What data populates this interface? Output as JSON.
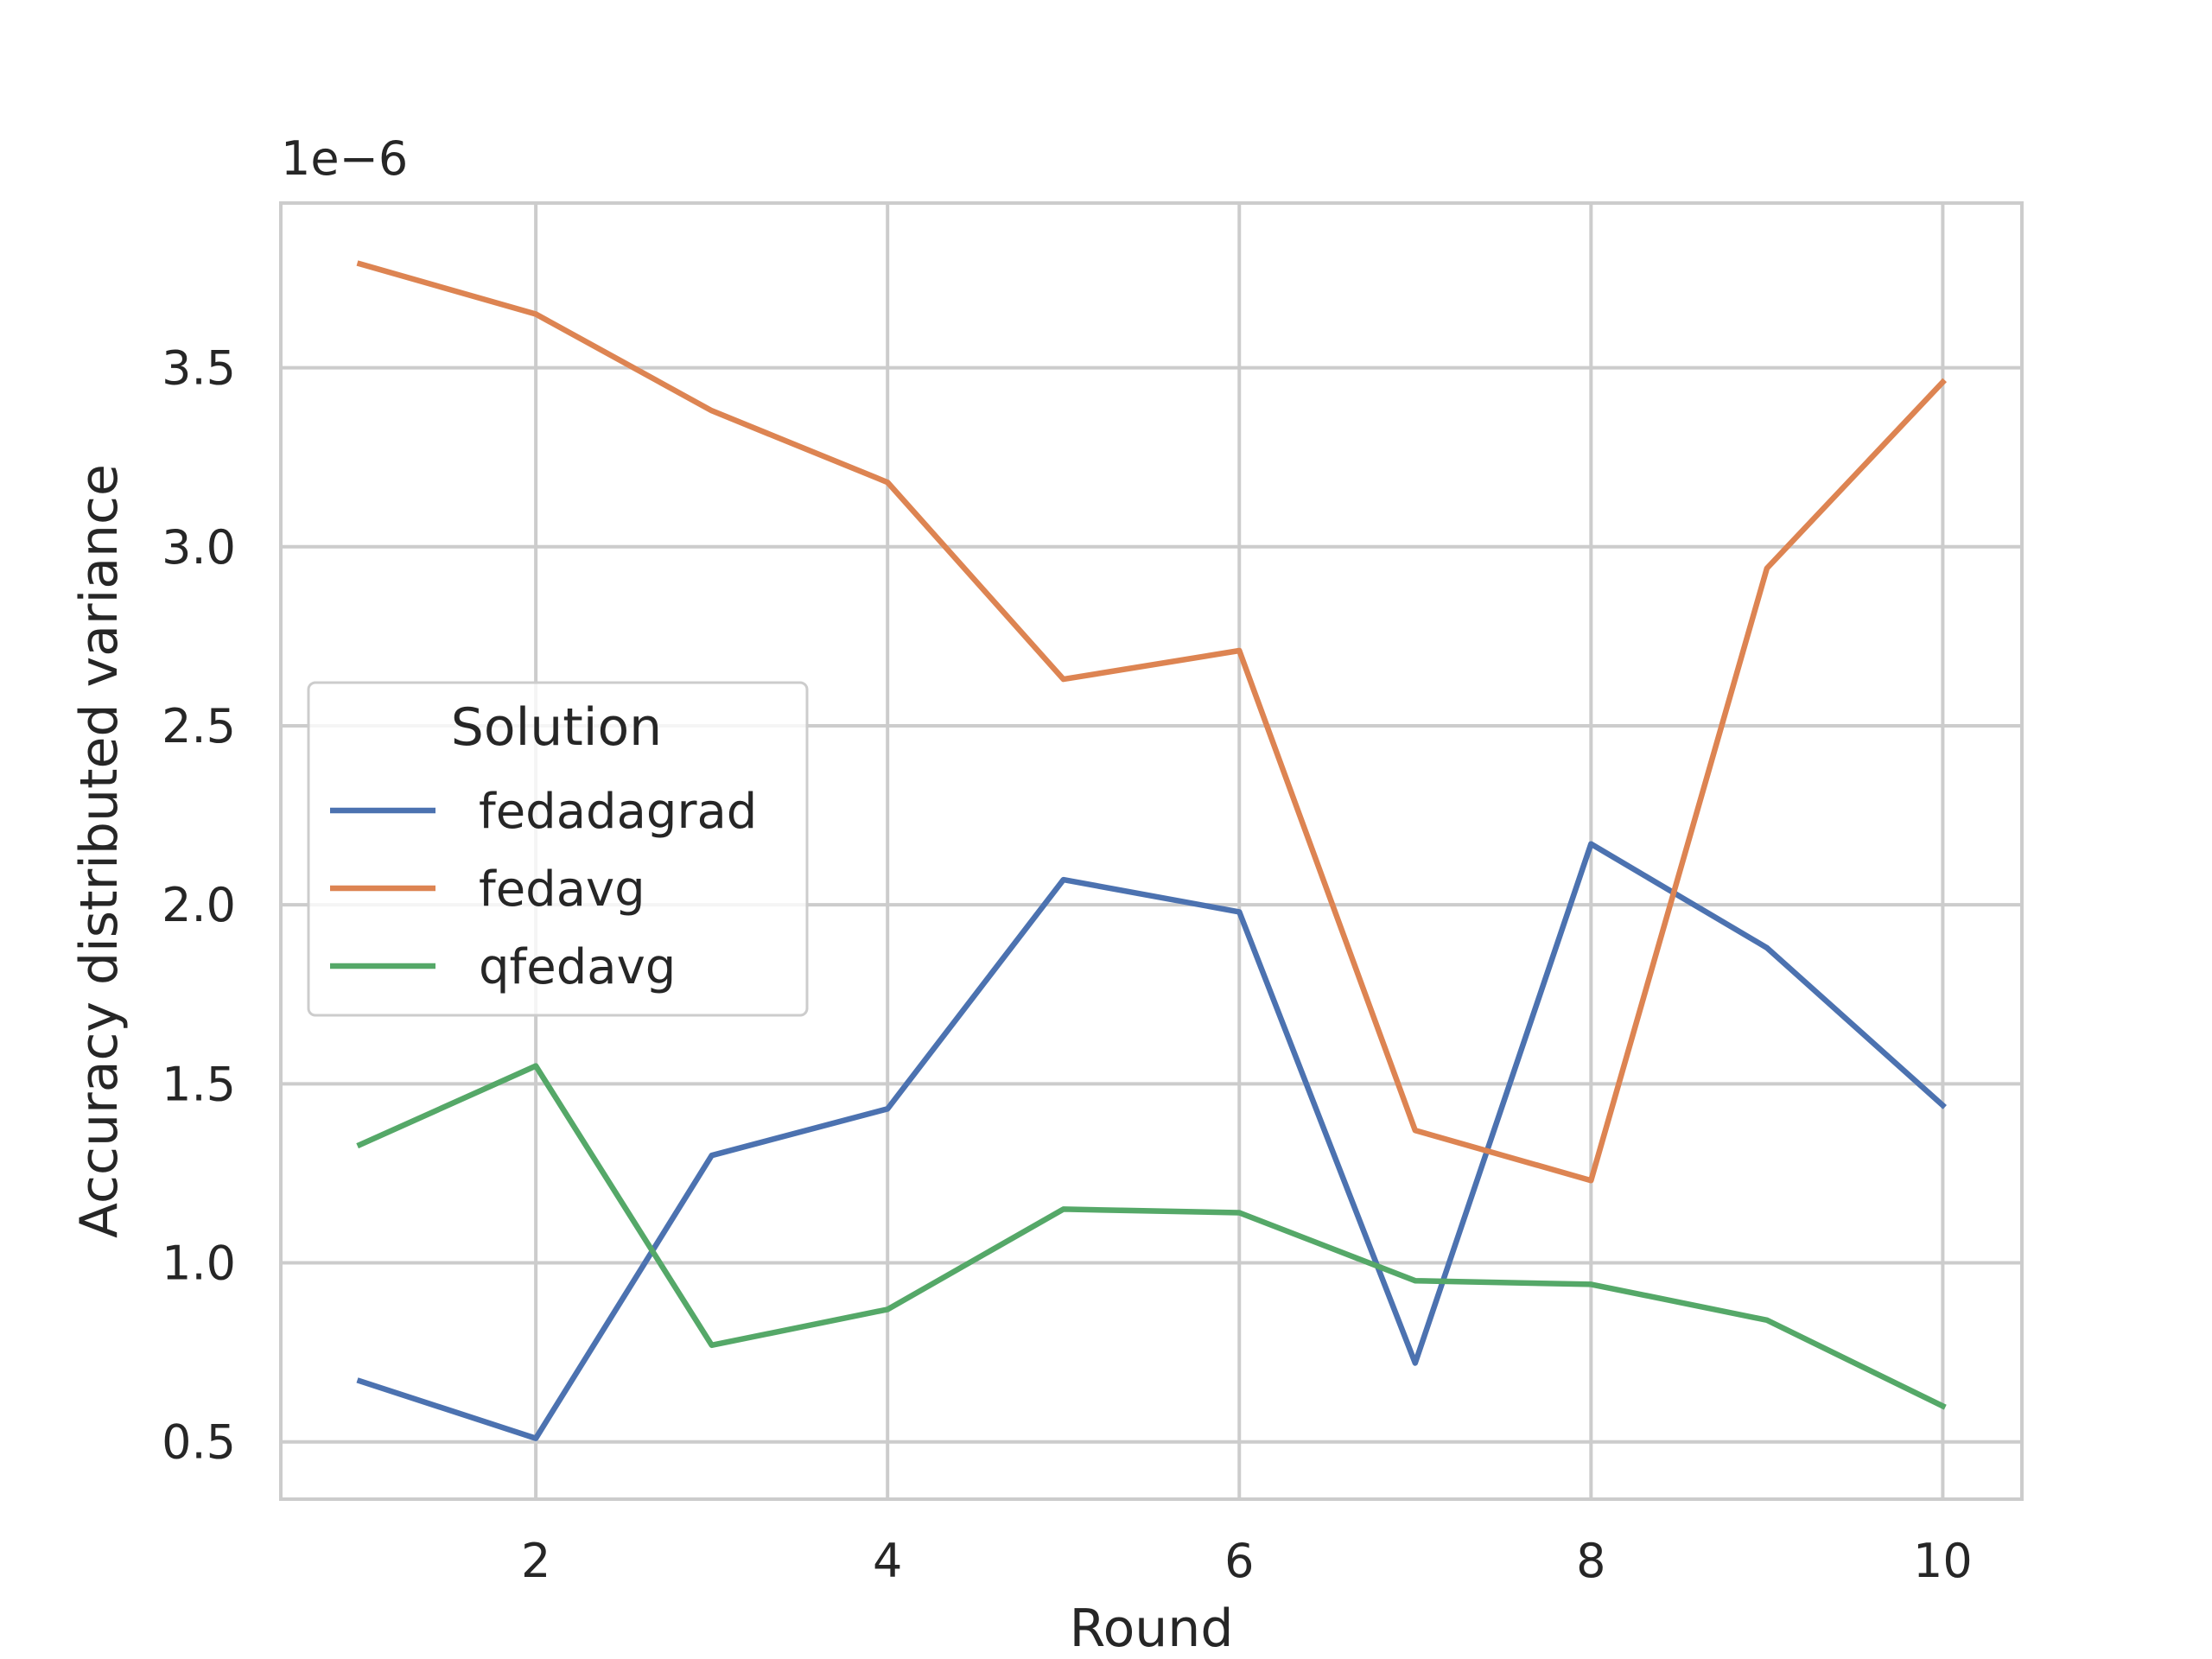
{
  "chart_data": {
    "type": "line",
    "title": "",
    "xlabel": "Round",
    "ylabel": "Accuracy distributed variance",
    "y_scale_label": "1e−6",
    "xlim": [
      0.55,
      10.45
    ],
    "ylim": [
      0.34,
      3.96
    ],
    "x_ticks": [
      2,
      4,
      6,
      8,
      10
    ],
    "y_ticks": [
      0.5,
      1.0,
      1.5,
      2.0,
      2.5,
      3.0,
      3.5
    ],
    "grid": true,
    "legend": {
      "title": "Solution",
      "position": "center-left"
    },
    "x": [
      1,
      2,
      3,
      4,
      5,
      6,
      7,
      8,
      9,
      10
    ],
    "series": [
      {
        "name": "fedadagrad",
        "color": "#4c72b0",
        "values": [
          0.67,
          0.51,
          1.3,
          1.43,
          2.07,
          1.98,
          0.72,
          2.17,
          1.88,
          1.44
        ]
      },
      {
        "name": "fedavg",
        "color": "#dd8452",
        "values": [
          3.79,
          3.65,
          3.38,
          3.18,
          2.63,
          2.71,
          1.37,
          1.23,
          2.94,
          3.46
        ]
      },
      {
        "name": "qfedavg",
        "color": "#55a868",
        "values": [
          1.33,
          1.55,
          0.77,
          0.87,
          1.15,
          1.14,
          0.95,
          0.94,
          0.84,
          0.6
        ]
      }
    ]
  }
}
